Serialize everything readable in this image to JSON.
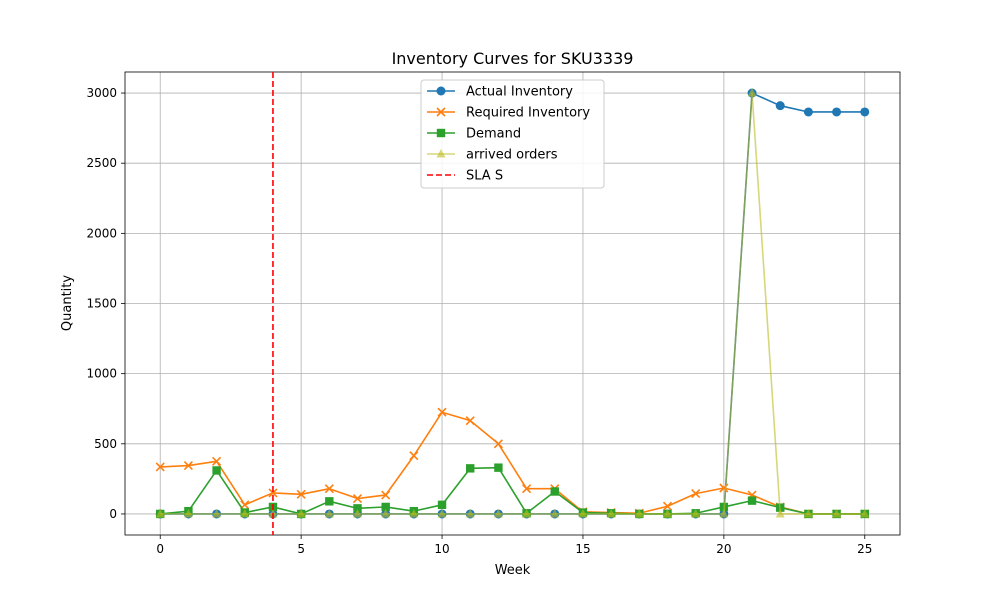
{
  "chart_data": {
    "type": "line",
    "title": "Inventory Curves for SKU3339",
    "xlabel": "Week",
    "ylabel": "Quantity",
    "xlim": [
      -1.25,
      26.25
    ],
    "ylim": [
      -150,
      3150
    ],
    "xticks": [
      0,
      5,
      10,
      15,
      20,
      25
    ],
    "yticks": [
      0,
      500,
      1000,
      1500,
      2000,
      2500,
      3000
    ],
    "grid": true,
    "legend_position": "top-center",
    "x": [
      0,
      1,
      2,
      3,
      4,
      5,
      6,
      7,
      8,
      9,
      10,
      11,
      12,
      13,
      14,
      15,
      16,
      17,
      18,
      19,
      20,
      21,
      22,
      23,
      24,
      25
    ],
    "series": [
      {
        "name": "Actual Inventory",
        "color": "#1f77b4",
        "marker": "circle",
        "linestyle": "solid",
        "values": [
          0,
          0,
          0,
          0,
          0,
          0,
          0,
          0,
          0,
          0,
          0,
          0,
          0,
          0,
          0,
          0,
          0,
          0,
          0,
          0,
          0,
          3000,
          2910,
          2865,
          2865,
          2865
        ]
      },
      {
        "name": "Required Inventory",
        "color": "#ff7f0e",
        "marker": "x",
        "linestyle": "solid",
        "values": [
          335,
          345,
          375,
          65,
          150,
          140,
          180,
          110,
          135,
          415,
          725,
          665,
          500,
          180,
          180,
          15,
          10,
          5,
          55,
          145,
          185,
          135,
          50,
          0,
          0,
          0
        ]
      },
      {
        "name": "Demand",
        "color": "#2ca02c",
        "marker": "square",
        "linestyle": "solid",
        "values": [
          0,
          20,
          310,
          10,
          50,
          0,
          90,
          40,
          50,
          20,
          65,
          325,
          330,
          5,
          160,
          10,
          5,
          0,
          0,
          5,
          50,
          95,
          45,
          0,
          0,
          0
        ]
      },
      {
        "name": "arrived orders",
        "color": "#bcbd22",
        "marker": "triangle",
        "linestyle": "solid",
        "alpha": 0.6,
        "values": [
          0,
          0,
          0,
          0,
          0,
          0,
          0,
          0,
          0,
          0,
          0,
          0,
          0,
          0,
          0,
          0,
          0,
          0,
          0,
          0,
          0,
          3000,
          0,
          0,
          0,
          0
        ]
      }
    ],
    "vlines": [
      {
        "name": "SLA S",
        "x": 4,
        "color": "#ff0000",
        "linestyle": "dashed"
      }
    ]
  }
}
